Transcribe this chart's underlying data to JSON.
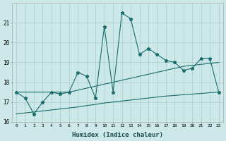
{
  "xlabel": "Humidex (Indice chaleur)",
  "bg_color": "#cce8e8",
  "grid_color": "#aacccc",
  "line_color": "#1a6b6b",
  "x": [
    0,
    1,
    2,
    3,
    4,
    5,
    6,
    7,
    8,
    9,
    10,
    11,
    12,
    13,
    14,
    15,
    16,
    17,
    18,
    19,
    20,
    21,
    22,
    23
  ],
  "y_main": [
    17.5,
    17.2,
    16.4,
    17.0,
    17.5,
    17.4,
    17.5,
    18.5,
    18.3,
    17.2,
    20.8,
    17.5,
    21.5,
    21.2,
    19.4,
    19.7,
    19.4,
    19.1,
    19.0,
    18.6,
    18.7,
    19.2,
    19.2,
    17.5
  ],
  "y_upper": [
    17.5,
    17.5,
    17.5,
    17.5,
    17.5,
    17.5,
    17.5,
    17.6,
    17.7,
    17.8,
    17.9,
    18.0,
    18.1,
    18.2,
    18.3,
    18.4,
    18.5,
    18.6,
    18.7,
    18.8,
    18.85,
    18.9,
    18.95,
    19.0
  ],
  "y_lower": [
    16.4,
    16.45,
    16.5,
    16.55,
    16.6,
    16.65,
    16.7,
    16.75,
    16.82,
    16.88,
    16.95,
    17.0,
    17.05,
    17.1,
    17.15,
    17.2,
    17.25,
    17.3,
    17.33,
    17.37,
    17.4,
    17.43,
    17.47,
    17.5
  ],
  "ylim": [
    16,
    22
  ],
  "xlim": [
    -0.5,
    23.5
  ],
  "yticks": [
    16,
    17,
    18,
    19,
    20,
    21
  ],
  "xticks": [
    0,
    1,
    2,
    3,
    4,
    5,
    6,
    7,
    8,
    9,
    10,
    11,
    12,
    13,
    14,
    15,
    16,
    17,
    18,
    19,
    20,
    21,
    22,
    23
  ]
}
